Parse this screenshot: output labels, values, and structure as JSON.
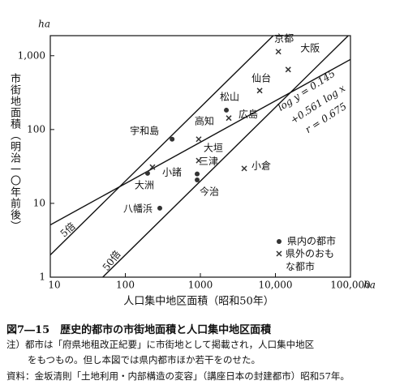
{
  "chart_data": {
    "type": "scatter",
    "log_scale": true,
    "x_label": "人口集中地区面積（昭和50年）",
    "y_label": "市街地面積（明治一〇年前後）",
    "x_unit": "ha",
    "y_unit": "ha",
    "xlim": [
      10,
      100000
    ],
    "ylim": [
      1,
      1870
    ],
    "xticks": [
      10,
      100,
      1000,
      {
        "value": 10000,
        "label": "10,000"
      },
      {
        "value": 100000,
        "label": "100,000"
      }
    ],
    "yticks": [
      1,
      10,
      100,
      {
        "value": 1000,
        "label": "1,000"
      }
    ],
    "series": [
      {
        "name": "県内の都市",
        "marker": "circle",
        "color": "#333",
        "labels": [
          "宇和島",
          "松山",
          "大洲",
          "三津",
          "今治",
          "八幡浜"
        ],
        "x": [
          420,
          2220,
          198,
          906,
          906,
          288
        ],
        "values": [
          74,
          183,
          25.5,
          25,
          20.8,
          8.6
        ]
      },
      {
        "name": "県外のおもな都市",
        "marker": "cross",
        "color": "#333",
        "labels": [
          "京都",
          "大阪",
          "仙台",
          "高知",
          "広島",
          "大垣",
          "小倉",
          "小諸"
        ],
        "x": [
          10960,
          14800,
          6170,
          950,
          2390,
          950,
          3840,
          230
        ],
        "values": [
          1135,
          650,
          337,
          74,
          143,
          38,
          29.7,
          31
        ]
      }
    ],
    "lines": [
      {
        "name": "5倍",
        "x": [
          10,
          9350
        ],
        "values": [
          2,
          1870
        ]
      },
      {
        "name": "50倍",
        "x": [
          50,
          93500
        ],
        "values": [
          1,
          1870
        ]
      },
      {
        "name": "regression",
        "x": [
          10,
          100000
        ],
        "values": [
          5.1,
          891
        ]
      }
    ],
    "annotations": [
      "log y = 0.145",
      "+0.561 log x",
      "r = 0.675"
    ]
  },
  "caption": {
    "title": "図7―15　歴史的都市の市街地面積と人口集中地区面積",
    "notes": [
      "注）都市は「府県地租改正紀要」に市街地として掲載され，人口集中地区",
      "をもつもの。但し本図では県内都市ほか若干をのせた。",
      "資料：金坂清則「土地利用・内部構造の変容」（講座日本の封建都市）昭和57年。"
    ]
  }
}
